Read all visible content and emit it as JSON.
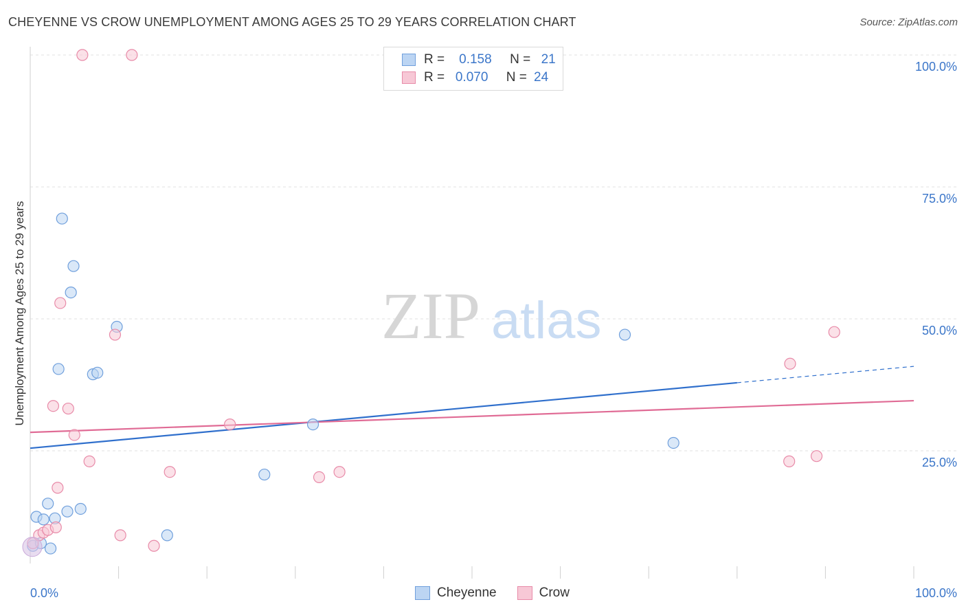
{
  "header": {
    "title": "CHEYENNE VS CROW UNEMPLOYMENT AMONG AGES 25 TO 29 YEARS CORRELATION CHART",
    "source": "Source: ZipAtlas.com"
  },
  "watermark": {
    "zip": "ZIP",
    "atlas": "atlas"
  },
  "legend": {
    "rows": [
      {
        "r_label": "R =",
        "r_value": "0.158",
        "n_label": "N =",
        "n_value": "21",
        "color": "#a9c8f0",
        "border": "#6f9fdc"
      },
      {
        "r_label": "R =",
        "r_value": "0.070",
        "n_label": "N =",
        "n_value": "24",
        "color": "#f7c3d3",
        "border": "#e88aa8"
      }
    ]
  },
  "bottom_legend": {
    "series1": "Cheyenne",
    "series2": "Crow"
  },
  "chart_data": {
    "type": "scatter",
    "xlabel": "",
    "ylabel": "Unemployment Among Ages 25 to 29 years",
    "x_tick_labels": [
      "0.0%",
      "100.0%"
    ],
    "y_tick_labels": [
      "25.0%",
      "50.0%",
      "75.0%",
      "100.0%"
    ],
    "xlim": [
      0,
      100
    ],
    "ylim": [
      5,
      100
    ],
    "grid": true,
    "legend_placement": "top-center",
    "series": [
      {
        "name": "Cheyenne",
        "color": "#6f9fdc",
        "fill": "#bcd5f3",
        "points": [
          [
            0.3,
            7.0
          ],
          [
            0.7,
            12.5
          ],
          [
            1.2,
            7.5
          ],
          [
            1.5,
            12.0
          ],
          [
            2.0,
            15.0
          ],
          [
            2.3,
            6.5
          ],
          [
            2.8,
            12.2
          ],
          [
            3.2,
            40.5
          ],
          [
            3.6,
            69.0
          ],
          [
            4.2,
            13.5
          ],
          [
            4.6,
            55.0
          ],
          [
            4.9,
            60.0
          ],
          [
            5.7,
            14.0
          ],
          [
            7.1,
            39.5
          ],
          [
            7.6,
            39.8
          ],
          [
            9.8,
            48.5
          ],
          [
            15.5,
            9.0
          ],
          [
            26.5,
            20.5
          ],
          [
            32.0,
            30.0
          ],
          [
            67.3,
            47.0
          ],
          [
            72.8,
            26.5
          ]
        ],
        "trend": {
          "x": [
            0,
            80,
            100
          ],
          "y": [
            25.5,
            38.0,
            41.0
          ],
          "solid_until": 80
        }
      },
      {
        "name": "Crow",
        "color": "#e88aa8",
        "fill": "#f7c8d6",
        "points": [
          [
            0.3,
            7.5
          ],
          [
            1.0,
            9.0
          ],
          [
            1.5,
            9.5
          ],
          [
            2.0,
            10.0
          ],
          [
            2.6,
            33.5
          ],
          [
            2.9,
            10.5
          ],
          [
            3.1,
            18.0
          ],
          [
            3.4,
            53.0
          ],
          [
            4.3,
            33.0
          ],
          [
            5.0,
            28.0
          ],
          [
            5.9,
            100.0
          ],
          [
            6.7,
            23.0
          ],
          [
            9.6,
            47.0
          ],
          [
            10.2,
            9.0
          ],
          [
            11.5,
            100.0
          ],
          [
            14.0,
            7.0
          ],
          [
            15.8,
            21.0
          ],
          [
            22.6,
            30.0
          ],
          [
            32.7,
            20.0
          ],
          [
            35.0,
            21.0
          ],
          [
            86.0,
            41.5
          ],
          [
            85.9,
            23.0
          ],
          [
            89.0,
            24.0
          ],
          [
            91.0,
            47.5
          ]
        ],
        "trend": {
          "x": [
            0,
            100
          ],
          "y": [
            28.5,
            34.5
          ],
          "solid_until": 100
        }
      }
    ]
  }
}
